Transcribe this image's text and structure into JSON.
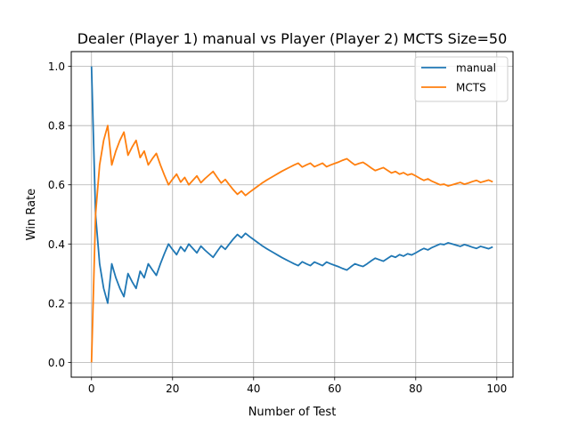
{
  "chart_data": {
    "type": "line",
    "title": "Dealer (Player 1) manual vs Player (Player 2) MCTS Size=50",
    "xlabel": "Number of Test",
    "ylabel": "Win Rate",
    "xlim": [
      -5,
      104
    ],
    "ylim": [
      -0.05,
      1.05
    ],
    "xticks": [
      0,
      20,
      40,
      60,
      80,
      100
    ],
    "yticks": [
      0.0,
      0.2,
      0.4,
      0.6,
      0.8,
      1.0
    ],
    "xtick_labels": [
      "0",
      "20",
      "40",
      "60",
      "80",
      "100"
    ],
    "ytick_labels": [
      "0.0",
      "0.2",
      "0.4",
      "0.6",
      "0.8",
      "1.0"
    ],
    "grid": true,
    "legend": "top-right",
    "x_start": 0,
    "series": [
      {
        "name": "manual",
        "color": "#1f77b4",
        "values": [
          1.0,
          0.5,
          0.333,
          0.25,
          0.2,
          0.333,
          0.286,
          0.25,
          0.222,
          0.3,
          0.273,
          0.25,
          0.308,
          0.286,
          0.333,
          0.313,
          0.294,
          0.333,
          0.368,
          0.4,
          0.381,
          0.364,
          0.391,
          0.375,
          0.4,
          0.385,
          0.37,
          0.393,
          0.379,
          0.367,
          0.355,
          0.375,
          0.394,
          0.382,
          0.4,
          0.417,
          0.432,
          0.421,
          0.436,
          0.425,
          0.415,
          0.405,
          0.395,
          0.386,
          0.378,
          0.37,
          0.362,
          0.354,
          0.347,
          0.34,
          0.333,
          0.327,
          0.34,
          0.333,
          0.327,
          0.339,
          0.333,
          0.327,
          0.339,
          0.333,
          0.328,
          0.323,
          0.317,
          0.312,
          0.323,
          0.333,
          0.328,
          0.324,
          0.333,
          0.343,
          0.352,
          0.347,
          0.342,
          0.351,
          0.36,
          0.355,
          0.364,
          0.359,
          0.367,
          0.363,
          0.37,
          0.378,
          0.385,
          0.38,
          0.388,
          0.394,
          0.4,
          0.398,
          0.404,
          0.4,
          0.396,
          0.392,
          0.398,
          0.394,
          0.389,
          0.385,
          0.392,
          0.388,
          0.384,
          0.39
        ]
      },
      {
        "name": "MCTS",
        "color": "#ff7f0e",
        "values": [
          0.0,
          0.5,
          0.667,
          0.75,
          0.8,
          0.667,
          0.714,
          0.75,
          0.778,
          0.7,
          0.727,
          0.75,
          0.692,
          0.714,
          0.667,
          0.688,
          0.706,
          0.667,
          0.632,
          0.6,
          0.619,
          0.636,
          0.609,
          0.625,
          0.6,
          0.615,
          0.63,
          0.607,
          0.621,
          0.633,
          0.645,
          0.625,
          0.606,
          0.618,
          0.6,
          0.583,
          0.568,
          0.579,
          0.564,
          0.575,
          0.585,
          0.595,
          0.605,
          0.614,
          0.622,
          0.63,
          0.638,
          0.646,
          0.653,
          0.66,
          0.667,
          0.673,
          0.66,
          0.667,
          0.673,
          0.661,
          0.667,
          0.673,
          0.661,
          0.667,
          0.672,
          0.677,
          0.683,
          0.688,
          0.677,
          0.667,
          0.672,
          0.676,
          0.667,
          0.657,
          0.648,
          0.653,
          0.658,
          0.649,
          0.64,
          0.645,
          0.636,
          0.641,
          0.633,
          0.637,
          0.63,
          0.622,
          0.615,
          0.62,
          0.612,
          0.606,
          0.6,
          0.602,
          0.596,
          0.6,
          0.604,
          0.608,
          0.602,
          0.606,
          0.611,
          0.615,
          0.608,
          0.612,
          0.616,
          0.61
        ]
      }
    ]
  }
}
